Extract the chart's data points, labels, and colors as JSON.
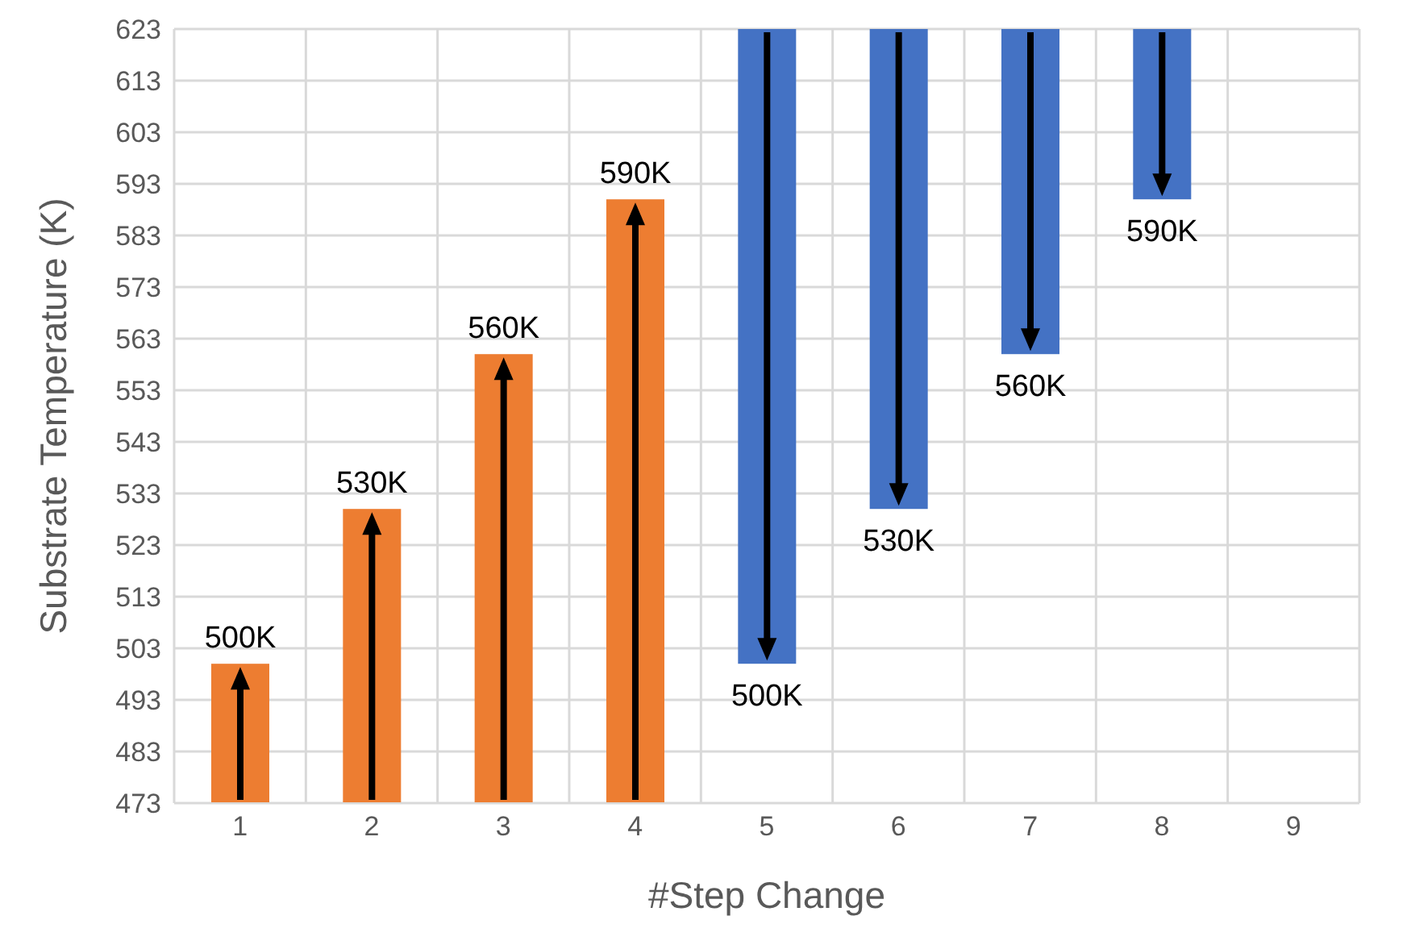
{
  "chart_data": {
    "type": "bar",
    "xlabel": "#Step Change",
    "ylabel": "Substrate Temperature (K)",
    "categories": [
      "1",
      "2",
      "3",
      "4",
      "5",
      "6",
      "7",
      "8",
      "9"
    ],
    "series": [
      {
        "color": "#ed7d31",
        "base": [
          473,
          473,
          473,
          473,
          null,
          null,
          null,
          null,
          null
        ],
        "values": [
          27,
          57,
          87,
          117,
          null,
          null,
          null,
          null,
          null
        ],
        "value_labels": [
          "500K",
          "530K",
          "560K",
          "590K",
          null,
          null,
          null,
          null,
          null
        ]
      },
      {
        "color": "#4472c4",
        "base": [
          null,
          null,
          null,
          null,
          623,
          623,
          623,
          623,
          null
        ],
        "values": [
          null,
          null,
          null,
          null,
          -123,
          -93,
          -63,
          -33,
          null
        ],
        "value_labels": [
          null,
          null,
          null,
          null,
          "500K",
          "530K",
          "560K",
          "590K",
          null
        ]
      }
    ],
    "ylim": [
      473,
      623
    ],
    "yticks": [
      473,
      483,
      493,
      503,
      513,
      523,
      533,
      543,
      553,
      563,
      573,
      583,
      593,
      603,
      613,
      623
    ],
    "grid": true
  }
}
